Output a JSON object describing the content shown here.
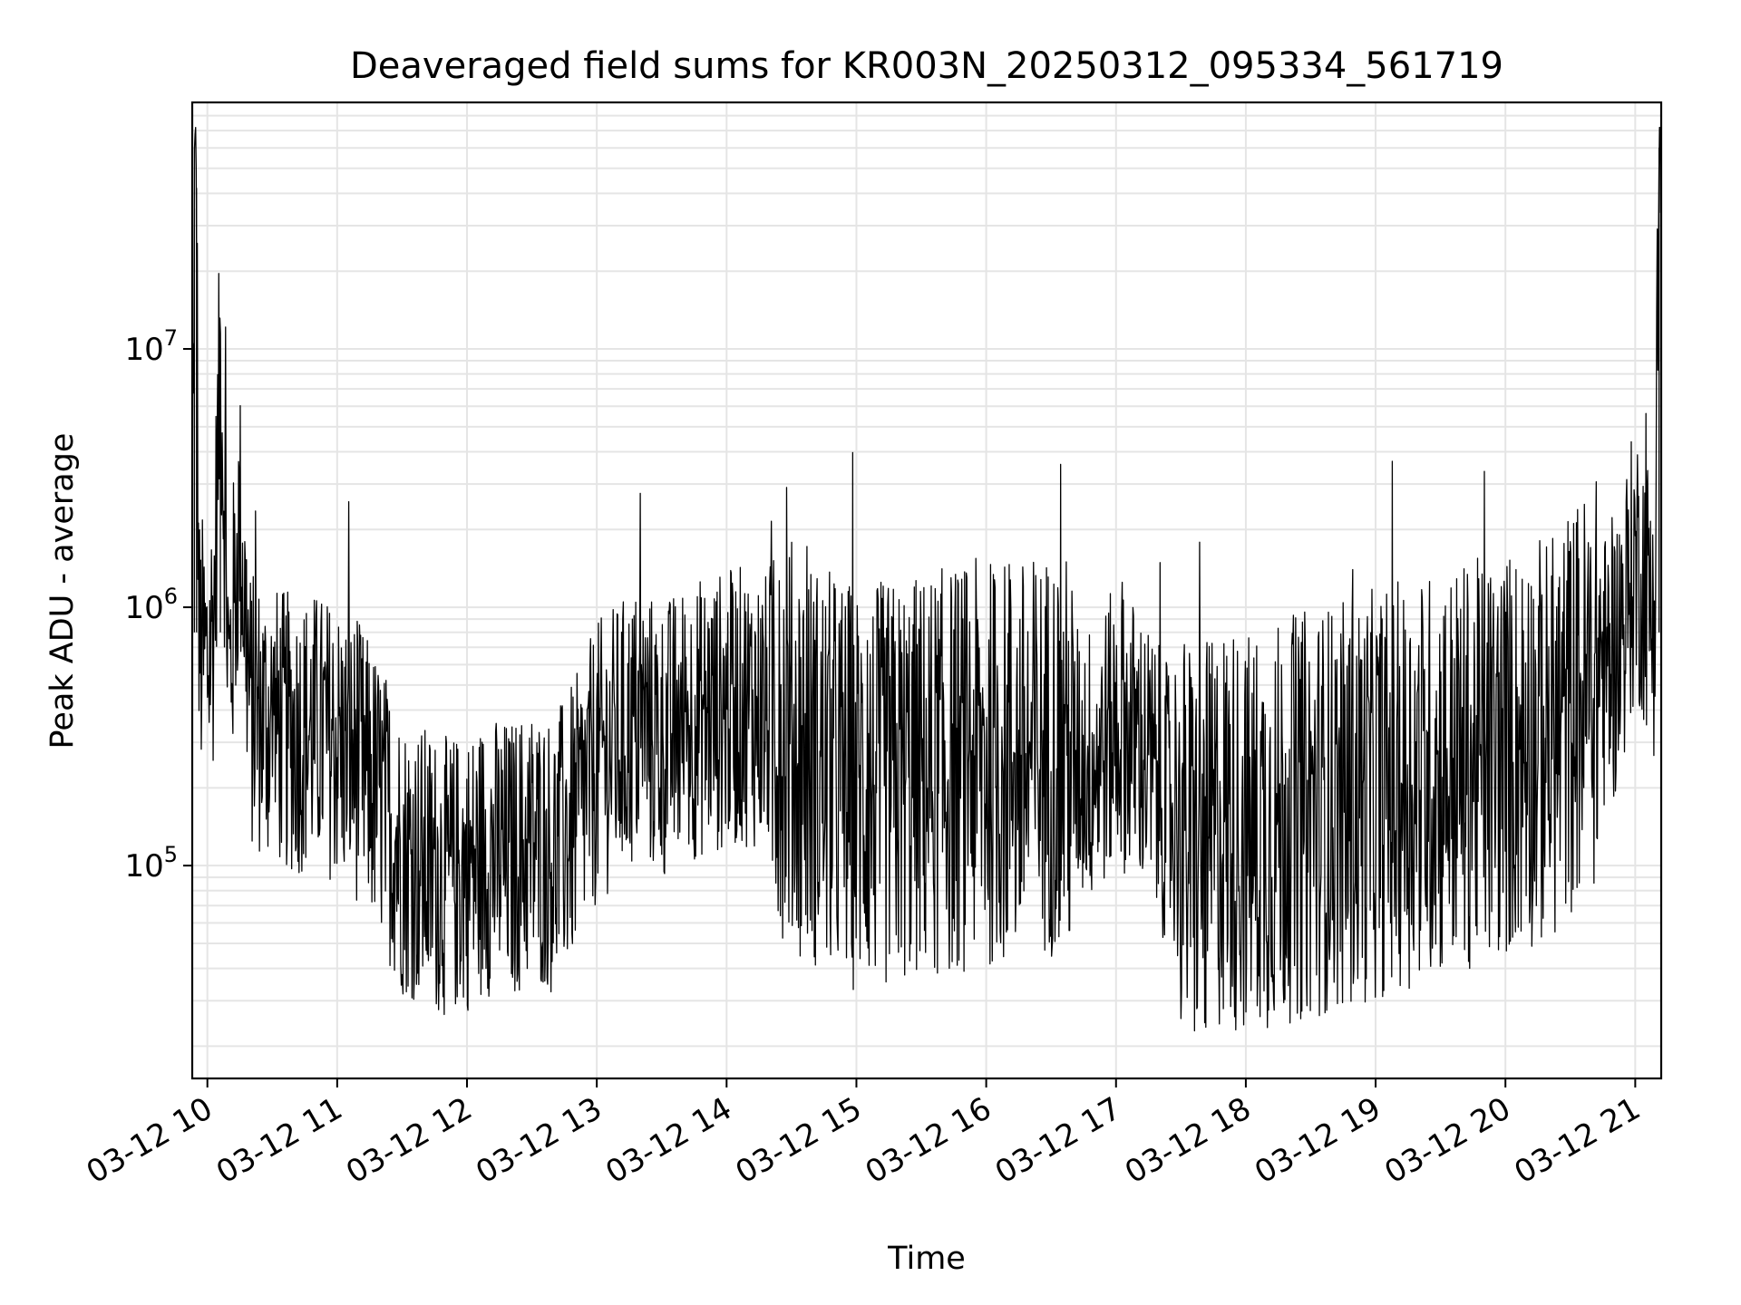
{
  "chart_data": {
    "type": "line",
    "title": "Deaveraged field sums for KR003N_20250312_095334_561719",
    "xlabel": "Time",
    "ylabel": "Peak ADU - average",
    "y_scale": "log",
    "ylim": [
      15000,
      90000000
    ],
    "xlim": [
      "2025-03-12 09:53",
      "2025-03-12 21:12"
    ],
    "grid": true,
    "x_ticks": [
      {
        "value": "2025-03-12 10:00",
        "label": "03-12 10"
      },
      {
        "value": "2025-03-12 11:00",
        "label": "03-12 11"
      },
      {
        "value": "2025-03-12 12:00",
        "label": "03-12 12"
      },
      {
        "value": "2025-03-12 13:00",
        "label": "03-12 13"
      },
      {
        "value": "2025-03-12 14:00",
        "label": "03-12 14"
      },
      {
        "value": "2025-03-12 15:00",
        "label": "03-12 15"
      },
      {
        "value": "2025-03-12 16:00",
        "label": "03-12 16"
      },
      {
        "value": "2025-03-12 17:00",
        "label": "03-12 17"
      },
      {
        "value": "2025-03-12 18:00",
        "label": "03-12 18"
      },
      {
        "value": "2025-03-12 19:00",
        "label": "03-12 19"
      },
      {
        "value": "2025-03-12 20:00",
        "label": "03-12 20"
      },
      {
        "value": "2025-03-12 21:00",
        "label": "03-12 21"
      }
    ],
    "y_ticks": [
      {
        "value": 100000,
        "base": "10",
        "exp": "5"
      },
      {
        "value": 1000000,
        "base": "10",
        "exp": "6"
      },
      {
        "value": 10000000,
        "base": "10",
        "exp": "7"
      }
    ],
    "series": [
      {
        "color": "#000000",
        "x": [
          "2025-03-12 09:53",
          "2025-03-12 09:54",
          "2025-03-12 09:55",
          "2025-03-12 09:56",
          "2025-03-12 09:58",
          "2025-03-12 10:00",
          "2025-03-12 10:03",
          "2025-03-12 10:06",
          "2025-03-12 10:10",
          "2025-03-12 10:15",
          "2025-03-12 10:20",
          "2025-03-12 10:30",
          "2025-03-12 10:40",
          "2025-03-12 10:50",
          "2025-03-12 11:00",
          "2025-03-12 11:10",
          "2025-03-12 11:20",
          "2025-03-12 11:30",
          "2025-03-12 11:40",
          "2025-03-12 11:50",
          "2025-03-12 12:00",
          "2025-03-12 12:10",
          "2025-03-12 12:20",
          "2025-03-12 12:30",
          "2025-03-12 12:40",
          "2025-03-12 12:50",
          "2025-03-12 13:00",
          "2025-03-12 13:10",
          "2025-03-12 13:20",
          "2025-03-12 13:30",
          "2025-03-12 13:40",
          "2025-03-12 13:50",
          "2025-03-12 14:00",
          "2025-03-12 14:10",
          "2025-03-12 14:20",
          "2025-03-12 14:30",
          "2025-03-12 14:40",
          "2025-03-12 14:50",
          "2025-03-12 15:00",
          "2025-03-12 15:10",
          "2025-03-12 15:20",
          "2025-03-12 15:30",
          "2025-03-12 15:40",
          "2025-03-12 15:50",
          "2025-03-12 16:00",
          "2025-03-12 16:10",
          "2025-03-12 16:20",
          "2025-03-12 16:30",
          "2025-03-12 16:40",
          "2025-03-12 16:50",
          "2025-03-12 17:00",
          "2025-03-12 17:10",
          "2025-03-12 17:20",
          "2025-03-12 17:30",
          "2025-03-12 17:40",
          "2025-03-12 17:50",
          "2025-03-12 18:00",
          "2025-03-12 18:10",
          "2025-03-12 18:20",
          "2025-03-12 18:30",
          "2025-03-12 18:40",
          "2025-03-12 18:50",
          "2025-03-12 19:00",
          "2025-03-12 19:10",
          "2025-03-12 19:20",
          "2025-03-12 19:30",
          "2025-03-12 19:40",
          "2025-03-12 19:50",
          "2025-03-12 20:00",
          "2025-03-12 20:10",
          "2025-03-12 20:20",
          "2025-03-12 20:30",
          "2025-03-12 20:40",
          "2025-03-12 20:50",
          "2025-03-12 21:00",
          "2025-03-12 21:05",
          "2025-03-12 21:09",
          "2025-03-12 21:11",
          "2025-03-12 21:12"
        ],
        "y": [
          800000,
          35000000,
          42000000,
          700000,
          650000,
          600000,
          900000,
          10000000,
          500000,
          2200000,
          400000,
          350000,
          320000,
          330000,
          300000,
          250000,
          180000,
          110000,
          100000,
          90000,
          95000,
          110000,
          105000,
          120000,
          110000,
          150000,
          250000,
          300000,
          350000,
          300000,
          350000,
          380000,
          400000,
          420000,
          380000,
          300000,
          250000,
          220000,
          200000,
          200000,
          210000,
          220000,
          230000,
          240000,
          250000,
          250000,
          250000,
          280000,
          250000,
          250000,
          350000,
          300000,
          200000,
          130000,
          110000,
          150000,
          130000,
          140000,
          150000,
          160000,
          170000,
          170000,
          190000,
          200000,
          220000,
          230000,
          240000,
          250000,
          270000,
          300000,
          300000,
          400000,
          500000,
          600000,
          1500000,
          1200000,
          900000,
          60000000,
          50000000
        ]
      }
    ]
  }
}
